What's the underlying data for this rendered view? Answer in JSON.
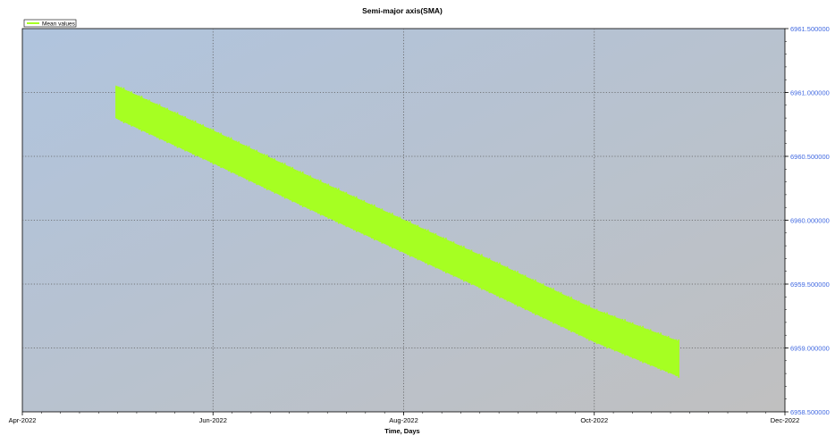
{
  "chart_data": {
    "type": "area",
    "title": "Semi-major axis(SMA)",
    "xlabel": "Time, Days",
    "ylabel": "",
    "x_ticks": [
      "Apr-2022",
      "Jun-2022",
      "Aug-2022",
      "Oct-2022",
      "Dec-2022"
    ],
    "x_range": [
      "2022-04-01",
      "2022-12-01"
    ],
    "y_ticks": [
      6958.5,
      6959.0,
      6959.5,
      6960.0,
      6960.5,
      6961.0,
      6961.5
    ],
    "y_tick_labels": [
      "6958.500000",
      "6959.000000",
      "6959.500000",
      "6960.000000",
      "6960.500000",
      "6961.000000",
      "6961.500000"
    ],
    "ylim": [
      6958.5,
      6961.5
    ],
    "y_axis_side": "right",
    "grid": true,
    "legend": {
      "placement": "top-left",
      "entries": [
        "Mean values"
      ]
    },
    "series": [
      {
        "name": "Mean values",
        "color": "#a6ff22",
        "x": [
          "2022-05-01",
          "2022-06-01",
          "2022-07-01",
          "2022-08-01",
          "2022-09-01",
          "2022-10-01",
          "2022-10-28"
        ],
        "upper": [
          6961.05,
          6960.7,
          6960.35,
          6960.0,
          6959.65,
          6959.3,
          6959.05
        ],
        "lower": [
          6960.8,
          6960.45,
          6960.1,
          6959.75,
          6959.4,
          6959.05,
          6958.78
        ]
      }
    ],
    "colors": {
      "plot_bg_top_left": "#b0c4de",
      "plot_bg_bottom_right": "#c0c0c0",
      "y_tick_label": "#4169e1",
      "grid": "#606060"
    }
  }
}
